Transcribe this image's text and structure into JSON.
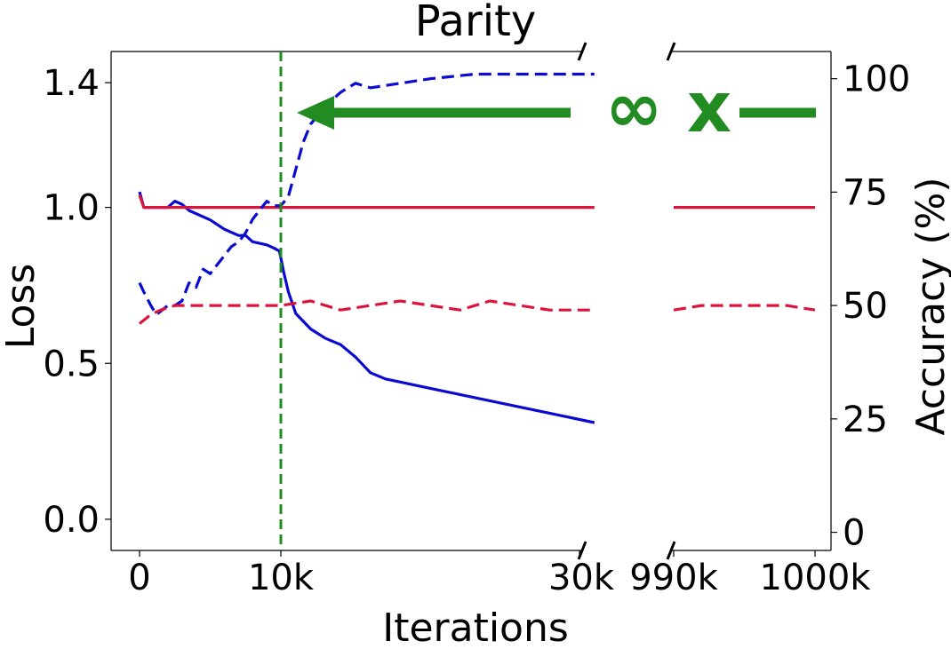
{
  "chart_data": {
    "type": "line",
    "title": "Parity",
    "xlabel": "Iterations",
    "ylabel_left": "Loss",
    "ylabel_right": "Accuracy (%)",
    "x_tick_labels": [
      "0",
      "10k",
      "30k",
      "990k",
      "1000k"
    ],
    "x_tick_values": [
      0,
      10000,
      30000,
      990000,
      1000000
    ],
    "x_broken_ranges": [
      [
        0,
        31000
      ],
      [
        990000,
        1000000
      ]
    ],
    "left_ylim": [
      -0.1,
      1.5
    ],
    "left_ticks": [
      "0.0",
      "0.5",
      "1.0",
      "1.4"
    ],
    "left_tick_values": [
      0.0,
      0.5,
      1.0,
      1.4
    ],
    "right_ylim": [
      -4,
      106
    ],
    "right_ticks": [
      "0",
      "25",
      "50",
      "75",
      "100"
    ],
    "right_tick_values": [
      0,
      25,
      50,
      75,
      100
    ],
    "grid": false,
    "vline": {
      "x": 10000,
      "color": "#228B22",
      "style": "dashed"
    },
    "annotation": {
      "text": "∞ x",
      "color": "#228B22"
    },
    "colors": {
      "blue": "#0a0ad0",
      "red": "#dc143c",
      "green": "#228B22"
    },
    "series": [
      {
        "axis": "left",
        "color": "#0a0ad0",
        "style": "solid",
        "x": [
          0,
          300,
          1000,
          1500,
          2000,
          2500,
          3000,
          3500,
          4000,
          5000,
          6000,
          7000,
          7500,
          8000,
          9000,
          9500,
          9900,
          10200,
          10500,
          11000,
          12000,
          13000,
          14000,
          15000,
          16000,
          17000,
          18000,
          20000,
          22000,
          24000,
          26000,
          28000,
          30000,
          31000
        ],
        "y": [
          1.05,
          1.0,
          1.0,
          1.0,
          1.0,
          1.02,
          1.01,
          0.99,
          0.98,
          0.96,
          0.93,
          0.91,
          0.91,
          0.89,
          0.88,
          0.87,
          0.86,
          0.79,
          0.73,
          0.66,
          0.61,
          0.58,
          0.56,
          0.52,
          0.47,
          0.45,
          0.44,
          0.42,
          0.4,
          0.38,
          0.36,
          0.34,
          0.32,
          0.31
        ]
      },
      {
        "axis": "left",
        "color": "#dc143c",
        "style": "solid",
        "x": [
          0,
          300,
          1000,
          3000,
          5000,
          7000,
          9000,
          10000,
          12000,
          15000,
          18000,
          21000,
          24000,
          27000,
          31000,
          990000,
          992000,
          994000,
          996000,
          998000,
          1000000
        ],
        "y": [
          1.04,
          1.0,
          1.0,
          1.0,
          1.0,
          1.0,
          1.0,
          1.0,
          1.0,
          1.0,
          1.0,
          1.0,
          1.0,
          1.0,
          1.0,
          1.0,
          1.0,
          1.0,
          1.0,
          1.0,
          1.0
        ]
      },
      {
        "axis": "right",
        "color": "#0a0ad0",
        "style": "dashed",
        "x": [
          0,
          300,
          800,
          1200,
          1600,
          2000,
          2500,
          3000,
          3500,
          4000,
          4500,
          5000,
          5500,
          6000,
          6500,
          7000,
          7500,
          8000,
          8500,
          9000,
          9500,
          10000,
          10500,
          11000,
          11500,
          12000,
          13000,
          14000,
          15000,
          16000,
          18000,
          20000,
          23000,
          26000,
          28000,
          31000
        ],
        "y": [
          55,
          53,
          50,
          48,
          49,
          50,
          50,
          51,
          55,
          54,
          58,
          57,
          59,
          61,
          63,
          64,
          66,
          69,
          71,
          73,
          72,
          72,
          74,
          80,
          86,
          90,
          94,
          97,
          99,
          98,
          99,
          100,
          101,
          101,
          101,
          101
        ]
      },
      {
        "axis": "right",
        "color": "#dc143c",
        "style": "dashed",
        "x": [
          0,
          400,
          800,
          1500,
          2500,
          4000,
          6000,
          8000,
          10000,
          12000,
          14000,
          16000,
          18000,
          20000,
          22000,
          24000,
          26000,
          28000,
          31000,
          990000,
          992000,
          994000,
          996000,
          998000,
          1000000
        ],
        "y": [
          46,
          47,
          48,
          49,
          50,
          50,
          50,
          50,
          50,
          51,
          49,
          50,
          51,
          50,
          49,
          51,
          50,
          49,
          49,
          49,
          50,
          50,
          50,
          50,
          49
        ]
      }
    ]
  }
}
